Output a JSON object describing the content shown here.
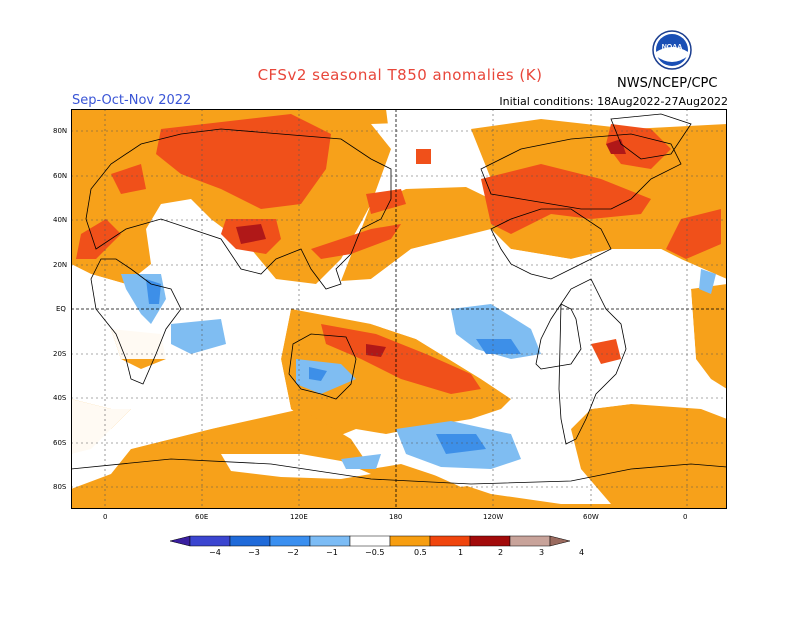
{
  "title": "CFSv2 seasonal T850 anomalies (K)",
  "season": "Sep-Oct-Nov 2022",
  "initial_conditions": "Initial conditions: 18Aug2022-27Aug2022",
  "org": "NWS/NCEP/CPC",
  "logo_text": "NOAA",
  "lat_labels": [
    "80N",
    "60N",
    "40N",
    "20N",
    "EQ",
    "20S",
    "40S",
    "60S",
    "80S"
  ],
  "lon_labels": [
    "0",
    "60E",
    "120E",
    "180",
    "120W",
    "60W",
    "0"
  ],
  "colorbar": {
    "labels": [
      "−4",
      "−3",
      "−2",
      "−1",
      "−0.5",
      "0.5",
      "1",
      "2",
      "3",
      "4"
    ],
    "colors": [
      "#3a1fa0",
      "#3b45d0",
      "#1f6ad9",
      "#3a8ff0",
      "#7cbcf5",
      "#ffffff",
      "#f79e10",
      "#f0450d",
      "#a20a0a",
      "#c8a39a",
      "#9a6a5e"
    ]
  },
  "colors": {
    "warm1": "#f7a11a",
    "warm2": "#f0501a",
    "warm3": "#b01818",
    "cool1": "#7fbdf2",
    "cool2": "#3d8fe8",
    "grid": "#555555"
  }
}
